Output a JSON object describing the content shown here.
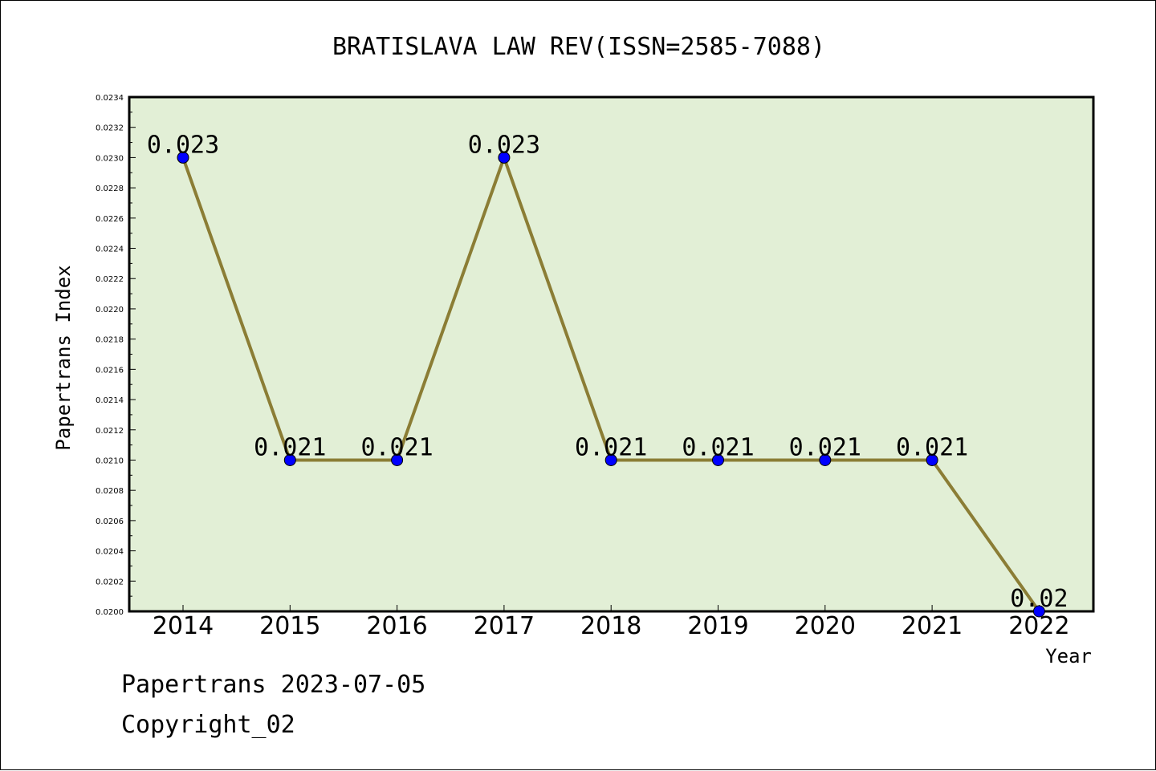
{
  "chart_data": {
    "type": "line",
    "title": "BRATISLAVA LAW REV(ISSN=2585-7088)",
    "xlabel": "Year",
    "ylabel": "Papertrans Index",
    "categories": [
      "2014",
      "2015",
      "2016",
      "2017",
      "2018",
      "2019",
      "2020",
      "2021",
      "2022"
    ],
    "values": [
      0.023,
      0.021,
      0.021,
      0.023,
      0.021,
      0.021,
      0.021,
      0.021,
      0.02
    ],
    "data_labels": [
      "0.023",
      "0.021",
      "0.021",
      "0.023",
      "0.021",
      "0.021",
      "0.021",
      "0.021",
      "0.02"
    ],
    "ylim": [
      0.02,
      0.0234
    ],
    "yticks": [
      "0.0200",
      "0.0202",
      "0.0204",
      "0.0206",
      "0.0208",
      "0.0210",
      "0.0212",
      "0.0214",
      "0.0216",
      "0.0218",
      "0.0220",
      "0.0222",
      "0.0224",
      "0.0226",
      "0.0228",
      "0.0230",
      "0.0232",
      "0.0234"
    ],
    "grid": false,
    "colors": {
      "plot_background": "#e2efd6",
      "line": "#8b7d35",
      "marker": "#0000ff"
    }
  },
  "footer": {
    "date_line": "Papertrans 2023-07-05",
    "copyright_line": "Copyright_02"
  }
}
